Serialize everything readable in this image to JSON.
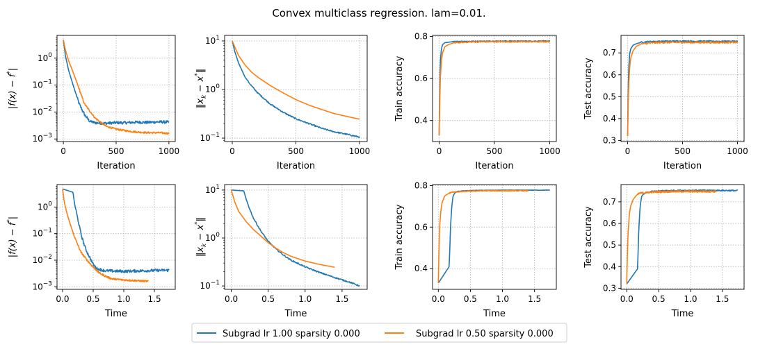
{
  "figure": {
    "title": "Convex multiclass regression. lam=0.01."
  },
  "legend": [
    {
      "label": "Subgrad lr 1.00 sparsity 0.000",
      "color": "#1f77b4"
    },
    {
      "label": "Subgrad lr 0.50 sparsity 0.000",
      "color": "#ff7f0e"
    }
  ],
  "labels": {
    "iteration": "Iteration",
    "time": "Time",
    "fgap_tex": [
      "|f(x) − f",
      "*",
      "|"
    ],
    "xgap_tex": [
      "‖x",
      "k",
      " − x",
      "*",
      "‖"
    ],
    "train": "Train accuracy",
    "test": "Test accuracy"
  },
  "chart_data": [
    {
      "id": "fgap-iter",
      "type": "line",
      "yscale": "log",
      "xlabel": "Iteration",
      "ylabel": "|f(x) - f*|",
      "xlim": [
        -60,
        1060
      ],
      "ylim": [
        0.0008,
        7
      ],
      "xticks": [
        0,
        500,
        1000
      ],
      "xtick_labels": [
        "0",
        "500",
        "1000"
      ],
      "yticks": [
        0.001,
        0.01,
        0.1,
        1
      ],
      "ytick_labels": [
        "10^-3",
        "10^-2",
        "10^-1",
        "10^0"
      ],
      "series": [
        {
          "name": "Subgrad lr 1.00 sparsity 0.000",
          "color": "#1f77b4",
          "noise": 0.04,
          "x": [
            0,
            20,
            50,
            100,
            150,
            200,
            250,
            300,
            400,
            500,
            600,
            700,
            800,
            900,
            1000
          ],
          "y": [
            4.8,
            1.2,
            0.35,
            0.08,
            0.02,
            0.008,
            0.0045,
            0.004,
            0.0038,
            0.004,
            0.004,
            0.0042,
            0.0041,
            0.0043,
            0.0042
          ]
        },
        {
          "name": "Subgrad lr 0.50 sparsity 0.000",
          "color": "#ff7f0e",
          "noise": 0.025,
          "x": [
            0,
            20,
            50,
            100,
            150,
            200,
            300,
            400,
            500,
            600,
            700,
            800,
            900,
            1000
          ],
          "y": [
            4.8,
            2.0,
            0.8,
            0.25,
            0.07,
            0.02,
            0.006,
            0.003,
            0.0023,
            0.002,
            0.0018,
            0.0017,
            0.0017,
            0.0016
          ]
        }
      ]
    },
    {
      "id": "xgap-iter",
      "type": "line",
      "yscale": "log",
      "xlabel": "Iteration",
      "ylabel": "||x_k - x*||",
      "xlim": [
        -60,
        1060
      ],
      "ylim": [
        0.085,
        13
      ],
      "xticks": [
        0,
        500,
        1000
      ],
      "xtick_labels": [
        "0",
        "500",
        "1000"
      ],
      "yticks": [
        0.1,
        1,
        10
      ],
      "ytick_labels": [
        "10^-1",
        "10^0",
        "10^1"
      ],
      "series": [
        {
          "name": "Subgrad lr 1.00 sparsity 0.000",
          "color": "#1f77b4",
          "noise": 0.01,
          "x": [
            0,
            20,
            50,
            100,
            150,
            200,
            300,
            400,
            500,
            600,
            700,
            800,
            900,
            1000
          ],
          "y": [
            10,
            6.0,
            3.5,
            1.8,
            1.2,
            0.85,
            0.5,
            0.34,
            0.25,
            0.2,
            0.16,
            0.135,
            0.12,
            0.105
          ]
        },
        {
          "name": "Subgrad lr 0.50 sparsity 0.000",
          "color": "#ff7f0e",
          "noise": 0,
          "x": [
            0,
            20,
            50,
            100,
            150,
            200,
            300,
            400,
            500,
            600,
            700,
            800,
            900,
            1000
          ],
          "y": [
            10,
            7.5,
            5.0,
            3.2,
            2.3,
            1.8,
            1.2,
            0.85,
            0.62,
            0.48,
            0.39,
            0.32,
            0.28,
            0.245
          ]
        }
      ]
    },
    {
      "id": "train-iter",
      "type": "line",
      "yscale": "linear",
      "xlabel": "Iteration",
      "ylabel": "Train accuracy",
      "xlim": [
        -60,
        1060
      ],
      "ylim": [
        0.3,
        0.805
      ],
      "xticks": [
        0,
        500,
        1000
      ],
      "xtick_labels": [
        "0",
        "500",
        "1000"
      ],
      "yticks": [
        0.4,
        0.6,
        0.8
      ],
      "ytick_labels": [
        "0.4",
        "0.6",
        "0.8"
      ],
      "series": [
        {
          "name": "Subgrad lr 1.00 sparsity 0.000",
          "color": "#1f77b4",
          "noise": 0.002,
          "x": [
            0,
            5,
            10,
            20,
            30,
            50,
            80,
            120,
            200,
            300,
            500,
            700,
            1000
          ],
          "y": [
            0.33,
            0.55,
            0.68,
            0.74,
            0.76,
            0.77,
            0.772,
            0.775,
            0.777,
            0.777,
            0.778,
            0.778,
            0.778
          ]
        },
        {
          "name": "Subgrad lr 0.50 sparsity 0.000",
          "color": "#ff7f0e",
          "noise": 0.003,
          "x": [
            0,
            5,
            10,
            20,
            30,
            50,
            80,
            120,
            200,
            300,
            500,
            700,
            1000
          ],
          "y": [
            0.33,
            0.48,
            0.6,
            0.68,
            0.72,
            0.75,
            0.76,
            0.768,
            0.772,
            0.774,
            0.775,
            0.775,
            0.775
          ]
        }
      ]
    },
    {
      "id": "test-iter",
      "type": "line",
      "yscale": "linear",
      "xlabel": "Iteration",
      "ylabel": "Test accuracy",
      "xlim": [
        -60,
        1060
      ],
      "ylim": [
        0.295,
        0.78
      ],
      "xticks": [
        0,
        500,
        1000
      ],
      "xtick_labels": [
        "0",
        "500",
        "1000"
      ],
      "yticks": [
        0.3,
        0.4,
        0.5,
        0.6,
        0.7
      ],
      "ytick_labels": [
        "0.3",
        "0.4",
        "0.5",
        "0.6",
        "0.7"
      ],
      "series": [
        {
          "name": "Subgrad lr 1.00 sparsity 0.000",
          "color": "#1f77b4",
          "noise": 0.003,
          "x": [
            0,
            5,
            10,
            20,
            30,
            50,
            80,
            120,
            200,
            300,
            500,
            700,
            1000
          ],
          "y": [
            0.32,
            0.52,
            0.63,
            0.7,
            0.72,
            0.735,
            0.742,
            0.748,
            0.752,
            0.753,
            0.754,
            0.753,
            0.753
          ]
        },
        {
          "name": "Subgrad lr 0.50 sparsity 0.000",
          "color": "#ff7f0e",
          "noise": 0.004,
          "x": [
            0,
            5,
            10,
            20,
            30,
            50,
            80,
            120,
            200,
            300,
            500,
            700,
            1000
          ],
          "y": [
            0.32,
            0.45,
            0.55,
            0.64,
            0.68,
            0.71,
            0.73,
            0.74,
            0.745,
            0.748,
            0.748,
            0.748,
            0.748
          ]
        }
      ]
    },
    {
      "id": "fgap-time",
      "type": "line",
      "yscale": "log",
      "xlabel": "Time",
      "ylabel": "|f(x) - f*|",
      "xlim": [
        -0.09,
        1.84
      ],
      "ylim": [
        0.0008,
        7
      ],
      "xticks": [
        0,
        0.5,
        1.0,
        1.5
      ],
      "xtick_labels": [
        "0.0",
        "0.5",
        "1.0",
        "1.5"
      ],
      "yticks": [
        0.001,
        0.01,
        0.1,
        1
      ],
      "ytick_labels": [
        "10^-3",
        "10^-2",
        "10^-1",
        "10^0"
      ],
      "series": [
        {
          "name": "Subgrad lr 1.00 sparsity 0.000",
          "color": "#1f77b4",
          "noise": 0.04,
          "x": [
            0,
            0.17,
            0.2,
            0.25,
            0.3,
            0.35,
            0.4,
            0.45,
            0.5,
            0.55,
            0.6,
            0.7,
            1.0,
            1.3,
            1.5,
            1.74
          ],
          "y": [
            4.8,
            3.6,
            1.2,
            0.35,
            0.1,
            0.04,
            0.02,
            0.012,
            0.007,
            0.005,
            0.0045,
            0.004,
            0.0038,
            0.004,
            0.0041,
            0.0042
          ]
        },
        {
          "name": "Subgrad lr 0.50 sparsity 0.000",
          "color": "#ff7f0e",
          "noise": 0.025,
          "x": [
            0,
            0.03,
            0.07,
            0.12,
            0.2,
            0.3,
            0.4,
            0.5,
            0.6,
            0.7,
            0.8,
            1.0,
            1.2,
            1.4
          ],
          "y": [
            4.8,
            1.5,
            0.6,
            0.25,
            0.07,
            0.02,
            0.01,
            0.0055,
            0.0033,
            0.0025,
            0.002,
            0.0018,
            0.0017,
            0.0016
          ]
        }
      ]
    },
    {
      "id": "xgap-time",
      "type": "line",
      "yscale": "log",
      "xlabel": "Time",
      "ylabel": "||x_k - x*||",
      "xlim": [
        -0.09,
        1.84
      ],
      "ylim": [
        0.085,
        13
      ],
      "xticks": [
        0,
        0.5,
        1.0,
        1.5
      ],
      "xtick_labels": [
        "0.0",
        "0.5",
        "1.0",
        "1.5"
      ],
      "yticks": [
        0.1,
        1,
        10
      ],
      "ytick_labels": [
        "10^-1",
        "10^0",
        "10^1"
      ],
      "series": [
        {
          "name": "Subgrad lr 1.00 sparsity 0.000",
          "color": "#1f77b4",
          "noise": 0.01,
          "x": [
            0,
            0.17,
            0.2,
            0.25,
            0.3,
            0.35,
            0.4,
            0.5,
            0.6,
            0.7,
            0.8,
            1.0,
            1.2,
            1.4,
            1.6,
            1.74
          ],
          "y": [
            10,
            9.6,
            6.5,
            4.0,
            2.6,
            1.9,
            1.4,
            0.85,
            0.6,
            0.45,
            0.35,
            0.25,
            0.19,
            0.15,
            0.12,
            0.1
          ]
        },
        {
          "name": "Subgrad lr 0.50 sparsity 0.000",
          "color": "#ff7f0e",
          "noise": 0,
          "x": [
            0,
            0.05,
            0.1,
            0.2,
            0.3,
            0.4,
            0.5,
            0.6,
            0.7,
            0.8,
            1.0,
            1.2,
            1.4
          ],
          "y": [
            10,
            5.5,
            3.6,
            2.2,
            1.5,
            1.1,
            0.8,
            0.62,
            0.5,
            0.42,
            0.33,
            0.28,
            0.245
          ]
        }
      ]
    },
    {
      "id": "train-time",
      "type": "line",
      "yscale": "linear",
      "xlabel": "Time",
      "ylabel": "Train accuracy",
      "xlim": [
        -0.09,
        1.84
      ],
      "ylim": [
        0.3,
        0.805
      ],
      "xticks": [
        0,
        0.5,
        1.0,
        1.5
      ],
      "xtick_labels": [
        "0.0",
        "0.5",
        "1.0",
        "1.5"
      ],
      "yticks": [
        0.4,
        0.6,
        0.8
      ],
      "ytick_labels": [
        "0.4",
        "0.6",
        "0.8"
      ],
      "series": [
        {
          "name": "Subgrad lr 1.00 sparsity 0.000",
          "color": "#1f77b4",
          "noise": 0.001,
          "x": [
            0,
            0.17,
            0.19,
            0.21,
            0.23,
            0.26,
            0.3,
            0.4,
            0.6,
            1.0,
            1.4,
            1.74
          ],
          "y": [
            0.33,
            0.41,
            0.6,
            0.7,
            0.75,
            0.765,
            0.772,
            0.775,
            0.777,
            0.778,
            0.778,
            0.778
          ]
        },
        {
          "name": "Subgrad lr 0.50 sparsity 0.000",
          "color": "#ff7f0e",
          "noise": 0.002,
          "x": [
            0,
            0.01,
            0.02,
            0.04,
            0.06,
            0.1,
            0.15,
            0.2,
            0.4,
            0.7,
            1.0,
            1.4
          ],
          "y": [
            0.33,
            0.48,
            0.6,
            0.68,
            0.72,
            0.75,
            0.76,
            0.768,
            0.772,
            0.775,
            0.775,
            0.775
          ]
        }
      ]
    },
    {
      "id": "test-time",
      "type": "line",
      "yscale": "linear",
      "xlabel": "Time",
      "ylabel": "Test accuracy",
      "xlim": [
        -0.09,
        1.84
      ],
      "ylim": [
        0.295,
        0.78
      ],
      "xticks": [
        0,
        0.5,
        1.0,
        1.5
      ],
      "xtick_labels": [
        "0.0",
        "0.5",
        "1.0",
        "1.5"
      ],
      "yticks": [
        0.3,
        0.4,
        0.5,
        0.6,
        0.7
      ],
      "ytick_labels": [
        "0.3",
        "0.4",
        "0.5",
        "0.6",
        "0.7"
      ],
      "series": [
        {
          "name": "Subgrad lr 1.00 sparsity 0.000",
          "color": "#1f77b4",
          "noise": 0.003,
          "x": [
            0,
            0.17,
            0.19,
            0.21,
            0.23,
            0.26,
            0.3,
            0.4,
            0.6,
            1.0,
            1.4,
            1.74
          ],
          "y": [
            0.32,
            0.39,
            0.58,
            0.68,
            0.72,
            0.735,
            0.742,
            0.748,
            0.752,
            0.753,
            0.753,
            0.752
          ]
        },
        {
          "name": "Subgrad lr 0.50 sparsity 0.000",
          "color": "#ff7f0e",
          "noise": 0.004,
          "x": [
            0,
            0.01,
            0.02,
            0.04,
            0.06,
            0.1,
            0.15,
            0.2,
            0.4,
            0.7,
            1.0,
            1.4
          ],
          "y": [
            0.32,
            0.45,
            0.55,
            0.64,
            0.68,
            0.71,
            0.73,
            0.74,
            0.745,
            0.748,
            0.748,
            0.748
          ]
        }
      ]
    }
  ]
}
